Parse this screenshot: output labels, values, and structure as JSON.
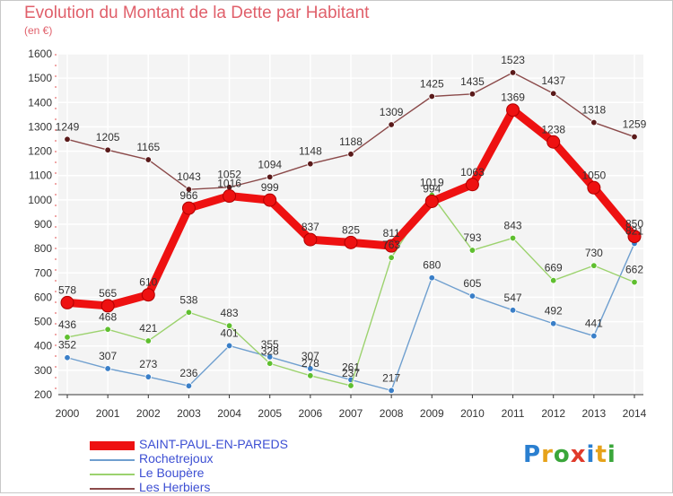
{
  "header": {
    "title": "Evolution du Montant de la Dette par Habitant",
    "subtitle": "(en €)"
  },
  "logo": {
    "text": "Proxiti",
    "letter_colors": [
      "#2a7fd0",
      "#e6a21a",
      "#3aa63a",
      "#e03a2a",
      "#2a7fd0",
      "#e6a21a",
      "#3aa63a"
    ]
  },
  "chart_data": {
    "type": "line",
    "x": [
      2000,
      2001,
      2002,
      2003,
      2004,
      2005,
      2006,
      2007,
      2008,
      2009,
      2010,
      2011,
      2012,
      2013,
      2014
    ],
    "x_tick_labels": [
      "2000",
      "2001",
      "2002",
      "2003",
      "2004",
      "2005",
      "2006",
      "2007",
      "2008",
      "2009",
      "2010",
      "2011",
      "2012",
      "2013",
      "2014"
    ],
    "y_tick_labels": [
      "200",
      "300",
      "400",
      "500",
      "600",
      "700",
      "800",
      "900",
      "1000",
      "1100",
      "1200",
      "1300",
      "1400",
      "1500",
      "1600"
    ],
    "ylim": [
      200,
      1600
    ],
    "grid": true,
    "legend_position": "bottom-left",
    "series": [
      {
        "name": "SAINT-PAUL-EN-PAREDS",
        "color": "#ee1111",
        "marker_color": "#ee1111",
        "emphasis": true,
        "values": [
          578,
          565,
          610,
          966,
          1016,
          999,
          837,
          825,
          811,
          994,
          1063,
          1369,
          1238,
          1050,
          850
        ],
        "labels": [
          "578",
          "565",
          "610",
          "966",
          "1016",
          "999",
          "837",
          "825",
          "811",
          "994",
          "1063",
          "1369",
          "1238",
          "1050",
          "850"
        ]
      },
      {
        "name": "Rochetrejoux",
        "color": "#6f9fcf",
        "marker_color": "#3a7fc8",
        "values": [
          352,
          307,
          273,
          236,
          401,
          355,
          307,
          261,
          217,
          680,
          605,
          547,
          492,
          441,
          821
        ],
        "labels": [
          "352",
          "307",
          "273",
          "236",
          "401",
          "355",
          "307",
          "261",
          "217",
          "680",
          "605",
          "547",
          "492",
          "441",
          "821"
        ]
      },
      {
        "name": "Le Boupère",
        "color": "#9cd26e",
        "marker_color": "#5fbf2f",
        "values": [
          436,
          468,
          421,
          538,
          483,
          328,
          278,
          237,
          763,
          1019,
          793,
          843,
          669,
          730,
          662
        ],
        "labels": [
          "436",
          "468",
          "421",
          "538",
          "483",
          "328",
          "278",
          "237",
          "763",
          "1019",
          "793",
          "843",
          "669",
          "730",
          "662"
        ]
      },
      {
        "name": "Les Herbiers",
        "color": "#8b4a4a",
        "marker_color": "#5a1a1a",
        "values": [
          1249,
          1205,
          1165,
          1043,
          1052,
          1094,
          1148,
          1188,
          1309,
          1425,
          1435,
          1523,
          1437,
          1318,
          1259
        ],
        "labels": [
          "1249",
          "1205",
          "1165",
          "1043",
          "1052",
          "1094",
          "1148",
          "1188",
          "1309",
          "1425",
          "1435",
          "1523",
          "1437",
          "1318",
          "1259"
        ]
      }
    ]
  }
}
